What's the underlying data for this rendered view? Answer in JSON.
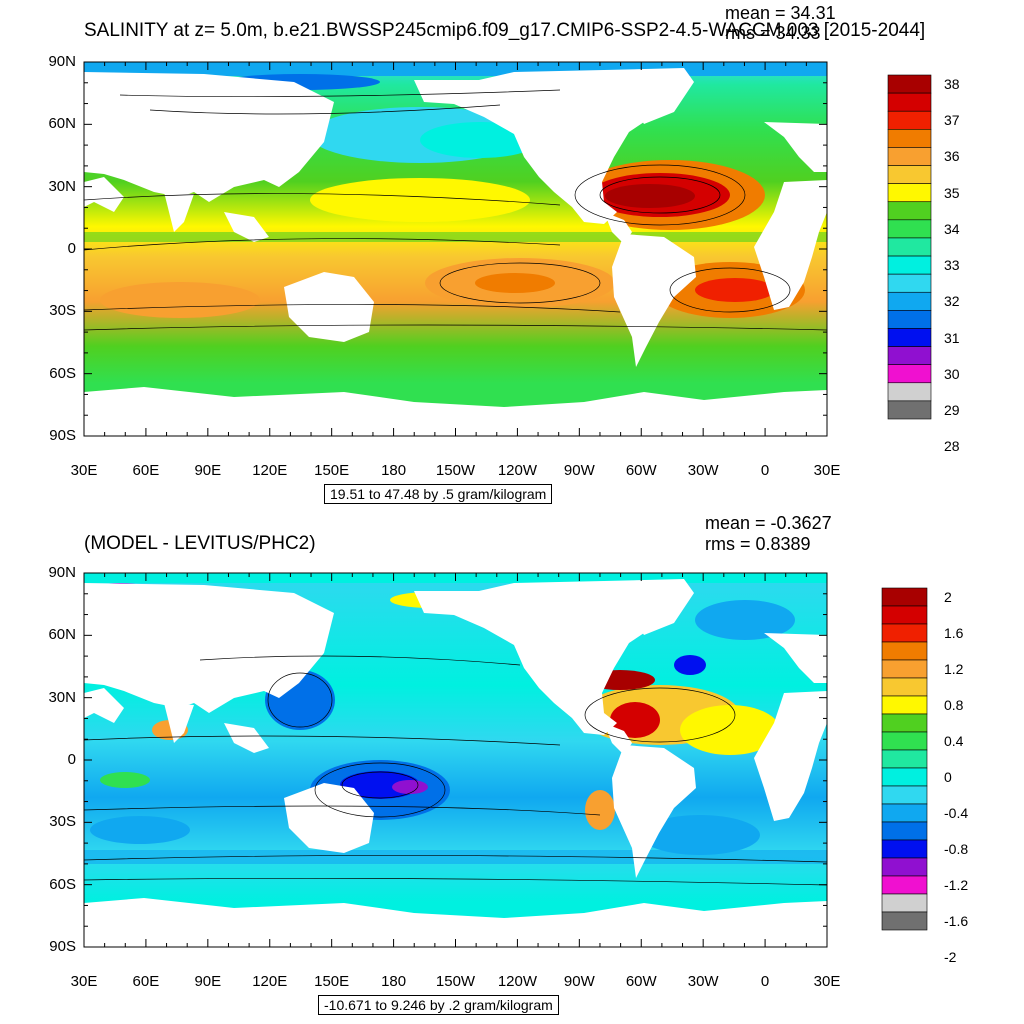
{
  "panel1": {
    "title": "SALINITY at z=   5.0m, b.e21.BWSSP245cmip6.f09_g17.CMIP6-SSP2-4.5-WACCM.003 [2015-2044]",
    "mean": "mean = 34.31",
    "rms": "rms = 34.33",
    "lat_labels": [
      "90N",
      "60N",
      "30N",
      "0",
      "30S",
      "60S",
      "90S"
    ],
    "lon_labels": [
      "30E",
      "60E",
      "90E",
      "120E",
      "150E",
      "180",
      "150W",
      "120W",
      "90W",
      "60W",
      "30W",
      "0",
      "30E"
    ],
    "contour_info": "19.51 to 47.48 by .5 gram/kilogram",
    "colorbar": {
      "labels": [
        "38",
        "37",
        "36",
        "35",
        "34",
        "33",
        "32",
        "31",
        "30",
        "29",
        "28"
      ],
      "colors": [
        "#a80000",
        "#d40000",
        "#f02000",
        "#f07c00",
        "#f8a030",
        "#f8c830",
        "#fff800",
        "#50d020",
        "#30e050",
        "#20e8a0",
        "#00f0e0",
        "#30d8f0",
        "#10a8f0",
        "#0070e8",
        "#0010f0",
        "#9010d0",
        "#f010d0",
        "#d0d0d0",
        "#707070"
      ]
    }
  },
  "panel2": {
    "title": "(MODEL - LEVITUS/PHC2)",
    "mean": "mean = -0.3627",
    "rms": "rms = 0.8389",
    "lat_labels": [
      "90N",
      "60N",
      "30N",
      "0",
      "30S",
      "60S",
      "90S"
    ],
    "lon_labels": [
      "30E",
      "60E",
      "90E",
      "120E",
      "150E",
      "180",
      "150W",
      "120W",
      "90W",
      "60W",
      "30W",
      "0",
      "30E"
    ],
    "contour_info": "-10.671 to 9.246 by .2 gram/kilogram",
    "colorbar": {
      "labels": [
        "2",
        "1.6",
        "1.2",
        "0.8",
        "0.4",
        "0",
        "-0.4",
        "-0.8",
        "-1.2",
        "-1.6",
        "-2"
      ],
      "colors": [
        "#a80000",
        "#d40000",
        "#f02000",
        "#f07c00",
        "#f8a030",
        "#f8c830",
        "#fff800",
        "#50d020",
        "#30e050",
        "#20e8a0",
        "#00f0e0",
        "#30d8f0",
        "#10a8f0",
        "#0070e8",
        "#0010f0",
        "#9010d0",
        "#f010d0",
        "#d0d0d0",
        "#707070"
      ]
    }
  },
  "colors": {
    "land": "#ffffff",
    "frame": "#000000"
  }
}
